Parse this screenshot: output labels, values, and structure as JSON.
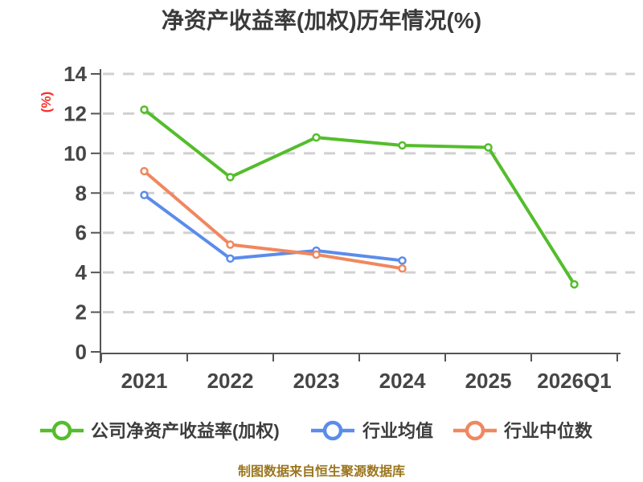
{
  "title": "净资产收益率(加权)历年情况(%)",
  "y_axis_unit": "(%)",
  "footer_note": "制图数据来自恒生聚源数据库",
  "legend": [
    "公司净资产收益率(加权)",
    "行业均值",
    "行业中位数"
  ],
  "colors": {
    "background": "#ffffff",
    "title_text": "#3a3a3a",
    "tick_text": "#464646",
    "legend_text": "#3d3d3d",
    "unit_label": "#fd2b2b",
    "footer_text": "#9b761e",
    "grid": "#d0d0d0",
    "axis": "#555555",
    "marker_fill": "#ffffff"
  },
  "chart_data": {
    "type": "line",
    "categories": [
      "2021",
      "2022",
      "2023",
      "2024",
      "2025",
      "2026Q1"
    ],
    "series": [
      {
        "name": "公司净资产收益率(加权)",
        "slug": "company-roe-weighted",
        "color": "#54bd2b",
        "values": [
          12.2,
          8.8,
          10.8,
          10.4,
          10.3,
          3.4
        ]
      },
      {
        "name": "行业均值",
        "slug": "industry-average",
        "color": "#5b8ceb",
        "values": [
          7.9,
          4.7,
          5.1,
          4.6,
          null,
          null
        ]
      },
      {
        "name": "行业中位数",
        "slug": "industry-median",
        "color": "#f0875f",
        "values": [
          9.1,
          5.4,
          4.9,
          4.2,
          null,
          null
        ]
      }
    ],
    "title": "净资产收益率(加权)历年情况(%)",
    "xlabel": "",
    "ylabel": "(%)",
    "ylim": [
      0,
      14
    ],
    "y_ticks": [
      0,
      2,
      4,
      6,
      8,
      10,
      12,
      14
    ],
    "grid": "horizontal-dashed",
    "legend_position": "bottom",
    "marker": "open-circle"
  }
}
